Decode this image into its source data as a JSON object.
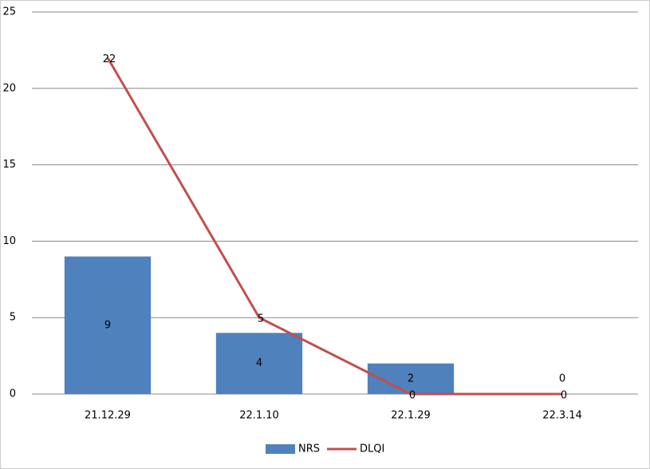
{
  "chart_data": {
    "type": "bar",
    "categories": [
      "21.12.29",
      "22.1.10",
      "22.1.29",
      "22.3.14"
    ],
    "series": [
      {
        "name": "NRS",
        "type": "bar",
        "color": "#4f81bd",
        "values": [
          9,
          4,
          2,
          0
        ]
      },
      {
        "name": "DLQI",
        "type": "line",
        "color": "#c0504d",
        "values": [
          22,
          5,
          0,
          0
        ]
      }
    ],
    "ylim": [
      0,
      25
    ],
    "yticks": [
      0,
      5,
      10,
      15,
      20,
      25
    ],
    "grid": true,
    "legend": "bottom"
  }
}
